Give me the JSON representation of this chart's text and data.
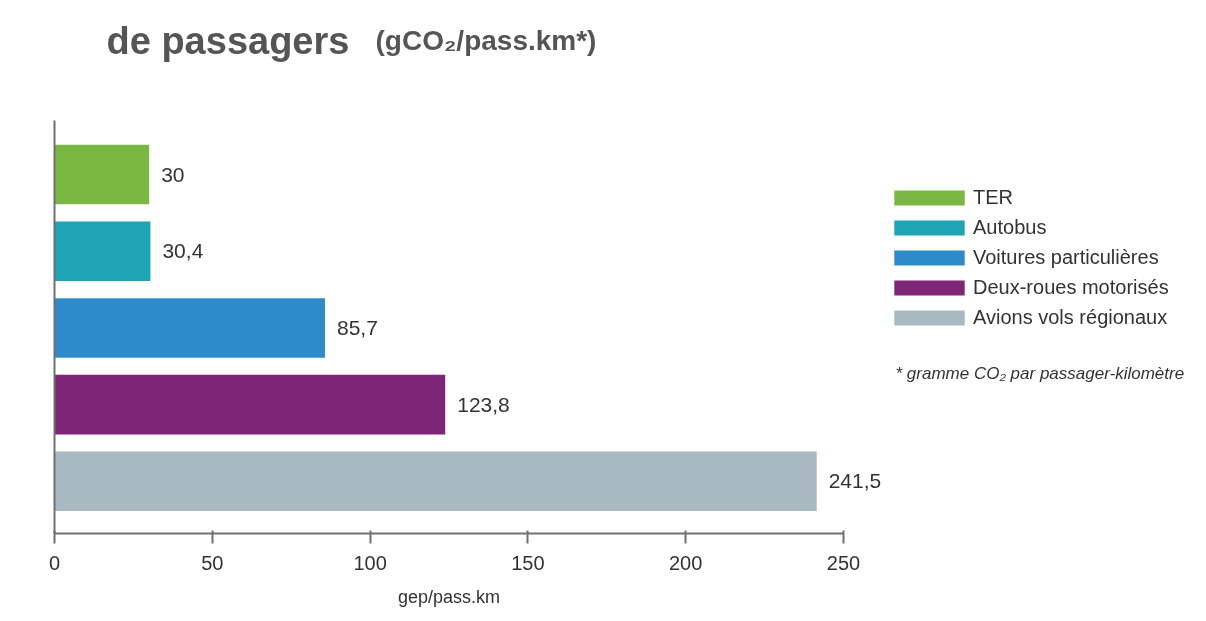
{
  "chart_data": {
    "type": "bar",
    "orientation": "horizontal",
    "stacked": true,
    "title": "de passagers",
    "subtitle": "(gCO₂/pass.km*)",
    "xlabel": "gep/pass.km",
    "categories": [
      null,
      null,
      null,
      null,
      null
    ],
    "series": [
      {
        "name": "TER",
        "color": "#7ab743",
        "values": [
          30,
          null,
          null,
          null,
          null
        ],
        "value_labels": [
          "30",
          null,
          null,
          null,
          null
        ]
      },
      {
        "name": "Autobus",
        "color": "#1ea5b5",
        "values": [
          null,
          30.4,
          null,
          null,
          null
        ],
        "value_labels": [
          null,
          "30,4",
          null,
          null,
          null
        ]
      },
      {
        "name": "Voitures particulières",
        "color": "#2e8bc9",
        "values": [
          null,
          null,
          85.7,
          null,
          null
        ],
        "value_labels": [
          null,
          null,
          "85,7",
          null,
          null
        ]
      },
      {
        "name": "Deux-roues motorisés",
        "color": "#7f2578",
        "values": [
          null,
          null,
          null,
          123.8,
          null
        ],
        "value_labels": [
          null,
          null,
          null,
          "123,8",
          null
        ]
      },
      {
        "name": "Avions vols régionaux",
        "color": "#a8b9c2",
        "values": [
          null,
          null,
          null,
          null,
          241.5
        ],
        "value_labels": [
          null,
          null,
          null,
          null,
          "241,5"
        ]
      }
    ],
    "xlim": [
      0,
      250
    ],
    "xticks": [
      0,
      50,
      100,
      150,
      200,
      250
    ],
    "grid": false,
    "legend": "right",
    "tick_labels": "x",
    "annotations": [
      "* gramme CO₂ par passager-kilomètre"
    ]
  }
}
